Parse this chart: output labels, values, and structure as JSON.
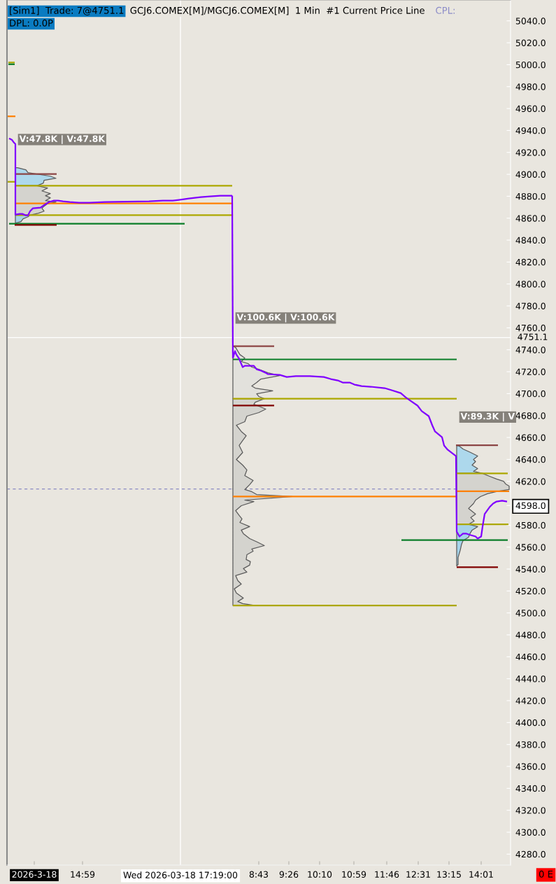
{
  "chart_data": [
    {
      "type": "line",
      "title": "GCJ6.COMEX[M]/MGCJ6.COMEX[M]  1 Min  #1 Current Price Line",
      "annotations": [
        "[Sim1]  Trade: 7@4751.1",
        "CPL:",
        "DPL: 0.0P",
        "V:47.8K | V:47.8K"
      ],
      "xlim": [
        "2026-03-18T13:11",
        "2026-03-18T18:33"
      ],
      "ylim": [
        4270,
        5059
      ],
      "tick_labels": "x",
      "xticks": [
        {
          "value": "2026-03-18T13:50",
          "label": "2026-3-18"
        },
        {
          "value": "2026-03-18T14:59",
          "label": "14:59"
        }
      ],
      "ref_lines": [
        {
          "axis": "x",
          "value": "2026-03-18T17:19",
          "label": "Wed 2026-03-18 17:19:00",
          "color": "#ffffff"
        },
        {
          "axis": "y",
          "value": 4751.1,
          "color": "#ffffff"
        },
        {
          "axis": "y",
          "value": 4613,
          "color": "#8a8ac4",
          "line_style": "dashed"
        }
      ],
      "series": [
        {
          "type": "area",
          "color": "#add8ec",
          "x": [
            "2026-03-18T13:23",
            "2026-03-18T13:26",
            "2026-03-18T13:38",
            "2026-03-18T13:41",
            "2026-03-18T14:13",
            "2026-03-18T14:21",
            "2026-03-18T14:04",
            "2026-03-18T14:03",
            "2026-03-18T13:54",
            "2026-03-18T13:23"
          ],
          "values": [
            4906.0,
            4906.0,
            4904.1,
            4901.5,
            4898.3,
            4896.4,
            4894.5,
            4892.0,
            4889.6,
            4889.6
          ]
        },
        {
          "type": "area",
          "color": "#d4d3ce",
          "x": [
            "2026-03-18T13:23",
            "2026-03-18T13:54",
            "2026-03-18T14:09",
            "2026-03-18T14:01",
            "2026-03-18T14:13",
            "2026-03-18T14:06",
            "2026-03-18T14:13",
            "2026-03-18T14:06",
            "2026-03-18T14:21",
            "2026-03-18T14:08",
            "2026-03-18T14:04",
            "2026-03-18T14:01",
            "2026-03-18T14:04",
            "2026-03-18T13:56",
            "2026-03-18T13:44",
            "2026-03-18T13:23"
          ],
          "values": [
            4889.6,
            4889.6,
            4887.5,
            4884.9,
            4882.4,
            4880.5,
            4878.6,
            4876.0,
            4874.7,
            4872.8,
            4870.9,
            4869.0,
            4866.4,
            4864.5,
            4862.8,
            4862.8
          ]
        },
        {
          "type": "area",
          "color": "#a6d3e9",
          "x": [
            "2026-03-18T13:23",
            "2026-03-18T13:44",
            "2026-03-18T13:41",
            "2026-03-18T13:34",
            "2026-03-18T13:31",
            "2026-03-18T13:24",
            "2026-03-18T13:23"
          ],
          "values": [
            4862.8,
            4862.8,
            4861.3,
            4859.4,
            4856.9,
            4855.6,
            4855.0
          ]
        },
        {
          "color": "#aca700",
          "x": [
            "2026-03-18T13:13",
            "2026-03-18T13:22"
          ],
          "values": [
            5002.0,
            5002.0
          ]
        },
        {
          "color": "#0a7d28",
          "x": [
            "2026-03-18T13:13",
            "2026-03-18T13:22"
          ],
          "values": [
            5000.4,
            5000.4
          ]
        },
        {
          "color": "#ff8000",
          "x": [
            "2026-03-18T13:11",
            "2026-03-18T13:23"
          ],
          "values": [
            4952.9,
            4952.9
          ]
        },
        {
          "color": "#aca700",
          "x": [
            "2026-03-18T13:11",
            "2026-03-18T13:23"
          ],
          "values": [
            4893.2,
            4893.2
          ]
        },
        {
          "color": "#8c4545",
          "x": [
            "2026-03-18T13:22",
            "2026-03-18T14:22"
          ],
          "values": [
            4900.3,
            4900.3
          ]
        },
        {
          "color": "#aca700",
          "x": [
            "2026-03-18T13:24",
            "2026-03-18T18:33"
          ],
          "values": [
            4889.6,
            4889.6
          ]
        },
        {
          "color": "#ff8000",
          "x": [
            "2026-03-18T13:24",
            "2026-03-18T18:33"
          ],
          "values": [
            4873.5,
            4873.5
          ]
        },
        {
          "color": "#aca700",
          "x": [
            "2026-03-18T13:24",
            "2026-03-18T18:33"
          ],
          "values": [
            4862.8,
            4862.8
          ]
        },
        {
          "color": "#0a7d28",
          "x": [
            "2026-03-18T13:14",
            "2026-03-18T17:25"
          ],
          "values": [
            4855.0,
            4855.0
          ]
        },
        {
          "color": "#800000",
          "x": [
            "2026-03-18T13:22",
            "2026-03-18T14:22"
          ],
          "values": [
            4853.9,
            4853.9
          ]
        },
        {
          "color": "#8000ff",
          "x": [
            "2026-03-18T13:14",
            "2026-03-18T13:18",
            "2026-03-18T13:21",
            "2026-03-18T13:23",
            "2026-03-18T13:23",
            "2026-03-18T13:29",
            "2026-03-18T13:33",
            "2026-03-18T13:38",
            "2026-03-18T13:41",
            "2026-03-18T13:44",
            "2026-03-18T13:48",
            "2026-03-18T13:59",
            "2026-03-18T14:06",
            "2026-03-18T14:11",
            "2026-03-18T14:18",
            "2026-03-18T14:24",
            "2026-03-18T14:31",
            "2026-03-18T14:41",
            "2026-03-18T14:54",
            "2026-03-18T15:09",
            "2026-03-18T15:31",
            "2026-03-18T16:34",
            "2026-03-18T16:54",
            "2026-03-18T17:08",
            "2026-03-18T17:24",
            "2026-03-18T17:31",
            "2026-03-18T17:48",
            "2026-03-18T18:01",
            "2026-03-18T18:16",
            "2026-03-18T18:33"
          ],
          "values": [
            4932.8,
            4931.5,
            4928.9,
            4927.7,
            4863.3,
            4863.9,
            4863.9,
            4862.6,
            4862.6,
            4866.4,
            4869.0,
            4869.6,
            4872.8,
            4874.7,
            4876.0,
            4876.0,
            4875.4,
            4874.7,
            4874.1,
            4874.1,
            4874.7,
            4875.4,
            4876.0,
            4876.0,
            4877.3,
            4877.9,
            4879.2,
            4879.8,
            4880.5,
            4880.5
          ]
        }
      ]
    },
    {
      "type": "line",
      "annotations": [
        "0 E",
        "V:100.6K | V:100.6K",
        "V:89.3K | V"
      ],
      "xlim": [
        "2026-03-19T08:05",
        "2026-03-19T14:43"
      ],
      "ylim": [
        4270,
        5059
      ],
      "xticks": [
        {
          "value": "2026-03-19T08:43",
          "label": "8:43"
        },
        {
          "value": "2026-03-19T09:26",
          "label": "9:26"
        },
        {
          "value": "2026-03-19T10:10",
          "label": "10:10"
        },
        {
          "value": "2026-03-19T10:59",
          "label": "10:59"
        },
        {
          "value": "2026-03-19T11:46",
          "label": "11:46"
        },
        {
          "value": "2026-03-19T12:31",
          "label": "12:31"
        },
        {
          "value": "2026-03-19T13:15",
          "label": "13:15"
        },
        {
          "value": "2026-03-19T14:01",
          "label": "14:01"
        }
      ],
      "yticks": [
        {
          "value": 4280,
          "label": "4280.0"
        },
        {
          "value": 4300,
          "label": "4300.0"
        },
        {
          "value": 4320,
          "label": "4320.0"
        },
        {
          "value": 4340,
          "label": "4340.0"
        },
        {
          "value": 4360,
          "label": "4360.0"
        },
        {
          "value": 4380,
          "label": "4380.0"
        },
        {
          "value": 4400,
          "label": "4400.0"
        },
        {
          "value": 4420,
          "label": "4420.0"
        },
        {
          "value": 4440,
          "label": "4440.0"
        },
        {
          "value": 4460,
          "label": "4460.0"
        },
        {
          "value": 4480,
          "label": "4480.0"
        },
        {
          "value": 4500,
          "label": "4500.0"
        },
        {
          "value": 4520,
          "label": "4520.0"
        },
        {
          "value": 4540,
          "label": "4540.0"
        },
        {
          "value": 4560,
          "label": "4560.0"
        },
        {
          "value": 4580,
          "label": "4580.0"
        },
        {
          "value": 4598,
          "label": "4598.0"
        },
        {
          "value": 4620,
          "label": "4620.0"
        },
        {
          "value": 4640,
          "label": "4640.0"
        },
        {
          "value": 4660,
          "label": "4660.0"
        },
        {
          "value": 4680,
          "label": "4680.0"
        },
        {
          "value": 4700,
          "label": "4700.0"
        },
        {
          "value": 4720,
          "label": "4720.0"
        },
        {
          "value": 4740,
          "label": "4740.0"
        },
        {
          "value": 4760,
          "label": "4760.0"
        },
        {
          "value": 4780,
          "label": "4780.0"
        },
        {
          "value": 4800,
          "label": "4800.0"
        },
        {
          "value": 4820,
          "label": "4820.0"
        },
        {
          "value": 4840,
          "label": "4840.0"
        },
        {
          "value": 4860,
          "label": "4860.0"
        },
        {
          "value": 4880,
          "label": "4880.0"
        },
        {
          "value": 4900,
          "label": "4900.0"
        },
        {
          "value": 4920,
          "label": "4920.0"
        },
        {
          "value": 4940,
          "label": "4940.0"
        },
        {
          "value": 4960,
          "label": "4960.0"
        },
        {
          "value": 4980,
          "label": "4980.0"
        },
        {
          "value": 5000,
          "label": "5000.0"
        },
        {
          "value": 5020,
          "label": "5020.0"
        },
        {
          "value": 5040,
          "label": "5040.0"
        }
      ],
      "ref_lines": [
        {
          "axis": "y",
          "value": 4751.1,
          "label": "4751.1",
          "color": "#ffffff"
        },
        {
          "axis": "y",
          "value": 4613,
          "color": "#8a8ac4",
          "line_style": "dashed"
        }
      ],
      "series": [
        {
          "type": "area",
          "color": "#e2e1dc",
          "x": [
            "2026-03-19T08:06",
            "2026-03-19T08:10",
            "2026-03-19T08:13",
            "2026-03-19T08:16",
            "2026-03-19T08:23",
            "2026-03-19T08:18",
            "2026-03-19T08:28",
            "2026-03-19T08:33",
            "2026-03-19T08:43",
            "2026-03-19T08:56",
            "2026-03-19T09:13",
            "2026-03-19T08:46",
            "2026-03-19T08:40",
            "2026-03-19T08:33",
            "2026-03-19T08:38",
            "2026-03-19T09:03",
            "2026-03-19T08:40",
            "2026-03-19T08:43",
            "2026-03-19T08:51",
            "2026-03-19T08:06"
          ],
          "values": [
            4743.3,
            4742.0,
            4738.8,
            4735.6,
            4732.5,
            4729.3,
            4727.3,
            4724.2,
            4722.2,
            4719.0,
            4716.5,
            4713.3,
            4710.1,
            4706.9,
            4705.0,
            4702.5,
            4699.9,
            4697.4,
            4695.4,
            4695.4
          ]
        },
        {
          "type": "area",
          "color": "#d4d3ce",
          "x": [
            "2026-03-19T08:06",
            "2026-03-19T08:51",
            "2026-03-19T08:38",
            "2026-03-19T08:36",
            "2026-03-19T08:46",
            "2026-03-19T08:53",
            "2026-03-19T08:43",
            "2026-03-19T08:26",
            "2026-03-19T08:23",
            "2026-03-19T08:11",
            "2026-03-19T08:18",
            "2026-03-19T08:25",
            "2026-03-19T08:20",
            "2026-03-19T08:15",
            "2026-03-19T08:20",
            "2026-03-19T08:11",
            "2026-03-19T08:20",
            "2026-03-19T08:26",
            "2026-03-19T08:23",
            "2026-03-19T08:35",
            "2026-03-19T08:30",
            "2026-03-19T08:23",
            "2026-03-19T08:33",
            "2026-03-19T08:40",
            "2026-03-19T09:31",
            "2026-03-19T08:23",
            "2026-03-19T08:36",
            "2026-03-19T08:18",
            "2026-03-19T08:10",
            "2026-03-19T08:15",
            "2026-03-19T08:19",
            "2026-03-19T08:16",
            "2026-03-19T08:30",
            "2026-03-19T08:18",
            "2026-03-19T08:21",
            "2026-03-19T08:30",
            "2026-03-19T08:41",
            "2026-03-19T08:51",
            "2026-03-19T08:33",
            "2026-03-19T08:35",
            "2026-03-19T08:26",
            "2026-03-19T08:25",
            "2026-03-19T08:31",
            "2026-03-19T08:30",
            "2026-03-19T08:21",
            "2026-03-19T08:26",
            "2026-03-19T08:10",
            "2026-03-19T08:13",
            "2026-03-19T08:18",
            "2026-03-19T08:08",
            "2026-03-19T08:11",
            "2026-03-19T08:21",
            "2026-03-19T08:13",
            "2026-03-19T08:20",
            "2026-03-19T08:38",
            "2026-03-19T08:06"
          ],
          "values": [
            4695.4,
            4695.4,
            4692.2,
            4690.3,
            4687.8,
            4685.9,
            4682.7,
            4679.5,
            4674.4,
            4671.2,
            4665.5,
            4661.6,
            4657.2,
            4652.7,
            4646.3,
            4639.9,
            4634.8,
            4630.4,
            4625.2,
            4620.8,
            4617.0,
            4612.5,
            4610.6,
            4608.0,
            4606.1,
            4602.9,
            4601.6,
            4597.8,
            4593.3,
            4588.9,
            4585.7,
            4582.5,
            4578.7,
            4575.5,
            4572.3,
            4567.8,
            4564.6,
            4561.4,
            4558.3,
            4556.3,
            4553.1,
            4548.7,
            4546.8,
            4543.6,
            4540.4,
            4537.2,
            4534.0,
            4529.5,
            4526.3,
            4521.9,
            4518.1,
            4513.6,
            4510.4,
            4508.5,
            4506.8,
            4506.8
          ]
        },
        {
          "type": "area",
          "color": "#add8ec",
          "x": [
            "2026-03-19T13:26",
            "2026-03-19T13:30",
            "2026-03-19T13:35",
            "2026-03-19T13:46",
            "2026-03-19T13:56",
            "2026-03-19T13:50",
            "2026-03-19T13:53",
            "2026-03-19T13:48",
            "2026-03-19T13:56",
            "2026-03-19T13:50",
            "2026-03-19T14:03",
            "2026-03-19T13:26"
          ],
          "values": [
            4652.9,
            4652.0,
            4649.5,
            4646.3,
            4643.1,
            4639.9,
            4638.0,
            4634.8,
            4631.6,
            4629.1,
            4627.2,
            4627.2
          ]
        },
        {
          "type": "area",
          "color": "#d4d3ce",
          "x": [
            "2026-03-19T13:26",
            "2026-03-19T14:03",
            "2026-03-19T14:13",
            "2026-03-19T14:23",
            "2026-03-19T14:33",
            "2026-03-19T14:36",
            "2026-03-19T14:41",
            "2026-03-19T14:41",
            "2026-03-19T14:25",
            "2026-03-19T14:10",
            "2026-03-19T14:00",
            "2026-03-19T13:53",
            "2026-03-19T13:50",
            "2026-03-19T13:43",
            "2026-03-19T13:53",
            "2026-03-19T13:46",
            "2026-03-19T13:51",
            "2026-03-19T13:43",
            "2026-03-19T13:26"
          ],
          "values": [
            4627.2,
            4627.2,
            4624.6,
            4622.1,
            4620.1,
            4617.6,
            4615.7,
            4612.5,
            4611.0,
            4608.7,
            4606.1,
            4602.9,
            4599.7,
            4595.3,
            4590.2,
            4587.0,
            4583.8,
            4580.8,
            4580.8
          ]
        },
        {
          "type": "area",
          "color": "#a6d3e9",
          "x": [
            "2026-03-19T13:26",
            "2026-03-19T13:43",
            "2026-03-19T13:56",
            "2026-03-19T13:48",
            "2026-03-19T13:45",
            "2026-03-19T13:43",
            "2026-03-19T13:35",
            "2026-03-19T13:33",
            "2026-03-19T13:31",
            "2026-03-19T13:28",
            "2026-03-19T13:28",
            "2026-03-19T13:26"
          ],
          "values": [
            4580.8,
            4580.8,
            4578.7,
            4575.5,
            4572.3,
            4569.1,
            4565.9,
            4562.7,
            4557.0,
            4550.6,
            4544.2,
            4542.9
          ]
        },
        {
          "color": "#8c4545",
          "x": [
            "2026-03-19T08:06",
            "2026-03-19T09:05"
          ],
          "values": [
            4743.3,
            4743.3
          ]
        },
        {
          "color": "#0a7d28",
          "x": [
            "2026-03-19T08:06",
            "2026-03-19T13:26"
          ],
          "values": [
            4731.2,
            4731.2
          ]
        },
        {
          "color": "#aca700",
          "x": [
            "2026-03-19T08:06",
            "2026-03-19T13:26"
          ],
          "values": [
            4695.4,
            4695.4
          ]
        },
        {
          "color": "#800000",
          "x": [
            "2026-03-19T08:06",
            "2026-03-19T09:05"
          ],
          "values": [
            4689.1,
            4689.1
          ]
        },
        {
          "color": "#ff8000",
          "x": [
            "2026-03-19T08:06",
            "2026-03-19T13:26"
          ],
          "values": [
            4606.1,
            4606.1
          ]
        },
        {
          "color": "#aca700",
          "x": [
            "2026-03-19T08:06",
            "2026-03-19T13:26"
          ],
          "values": [
            4506.8,
            4506.8
          ]
        },
        {
          "color": "#8c4545",
          "x": [
            "2026-03-19T13:25",
            "2026-03-19T14:25"
          ],
          "values": [
            4652.9,
            4652.9
          ]
        },
        {
          "color": "#aca700",
          "x": [
            "2026-03-19T13:26",
            "2026-03-19T14:39"
          ],
          "values": [
            4627.2,
            4627.2
          ]
        },
        {
          "color": "#ff8000",
          "x": [
            "2026-03-19T13:26",
            "2026-03-19T14:41"
          ],
          "values": [
            4611.0,
            4611.0
          ]
        },
        {
          "color": "#aca700",
          "x": [
            "2026-03-19T13:26",
            "2026-03-19T14:40"
          ],
          "values": [
            4580.8,
            4580.8
          ]
        },
        {
          "color": "#0a7d28",
          "x": [
            "2026-03-19T12:07",
            "2026-03-19T14:39"
          ],
          "values": [
            4566.5,
            4566.5
          ]
        },
        {
          "color": "#800000",
          "x": [
            "2026-03-19T13:26",
            "2026-03-19T14:25"
          ],
          "values": [
            4541.7,
            4541.7
          ]
        },
        {
          "color": "#8000ff",
          "x": [
            "2026-03-19T08:06",
            "2026-03-19T08:09",
            "2026-03-19T08:11",
            "2026-03-19T08:15",
            "2026-03-19T08:17",
            "2026-03-19T08:20",
            "2026-03-19T08:23",
            "2026-03-19T08:36",
            "2026-03-19T08:40",
            "2026-03-19T08:46",
            "2026-03-19T08:53",
            "2026-03-19T08:56",
            "2026-03-19T09:13",
            "2026-03-19T09:23",
            "2026-03-19T09:36",
            "2026-03-19T09:56",
            "2026-03-19T10:16",
            "2026-03-19T10:26",
            "2026-03-19T10:36",
            "2026-03-19T10:43",
            "2026-03-19T10:53",
            "2026-03-19T11:00",
            "2026-03-19T11:10",
            "2026-03-19T11:23",
            "2026-03-19T11:43",
            "2026-03-19T11:53",
            "2026-03-19T12:06",
            "2026-03-19T12:13",
            "2026-03-19T12:20",
            "2026-03-19T12:30",
            "2026-03-19T12:36",
            "2026-03-19T12:46",
            "2026-03-19T12:51",
            "2026-03-19T12:55",
            "2026-03-19T13:05",
            "2026-03-19T13:08",
            "2026-03-19T13:13",
            "2026-03-19T13:25",
            "2026-03-19T13:26",
            "2026-03-19T13:30",
            "2026-03-19T13:35",
            "2026-03-19T13:40",
            "2026-03-19T13:46",
            "2026-03-19T13:53",
            "2026-03-19T13:56",
            "2026-03-19T14:01",
            "2026-03-19T14:03",
            "2026-03-19T14:06",
            "2026-03-19T14:13",
            "2026-03-19T14:18",
            "2026-03-19T14:23",
            "2026-03-19T14:31",
            "2026-03-19T14:38"
          ],
          "values": [
            4732.5,
            4738.8,
            4735.6,
            4731.8,
            4728.6,
            4724.2,
            4725.4,
            4725.4,
            4722.2,
            4721.0,
            4719.0,
            4717.8,
            4717.1,
            4715.2,
            4715.9,
            4715.9,
            4715.2,
            4713.3,
            4712.0,
            4710.1,
            4710.1,
            4708.2,
            4706.9,
            4706.3,
            4705.0,
            4703.1,
            4700.5,
            4696.7,
            4693.5,
            4689.1,
            4684.0,
            4679.5,
            4671.2,
            4665.5,
            4660.3,
            4652.7,
            4648.9,
            4643.1,
            4574.2,
            4569.7,
            4572.3,
            4572.3,
            4571.0,
            4569.7,
            4567.8,
            4569.7,
            4578.7,
            4590.2,
            4596.5,
            4599.7,
            4601.6,
            4602.3,
            4601.6
          ]
        }
      ]
    }
  ]
}
